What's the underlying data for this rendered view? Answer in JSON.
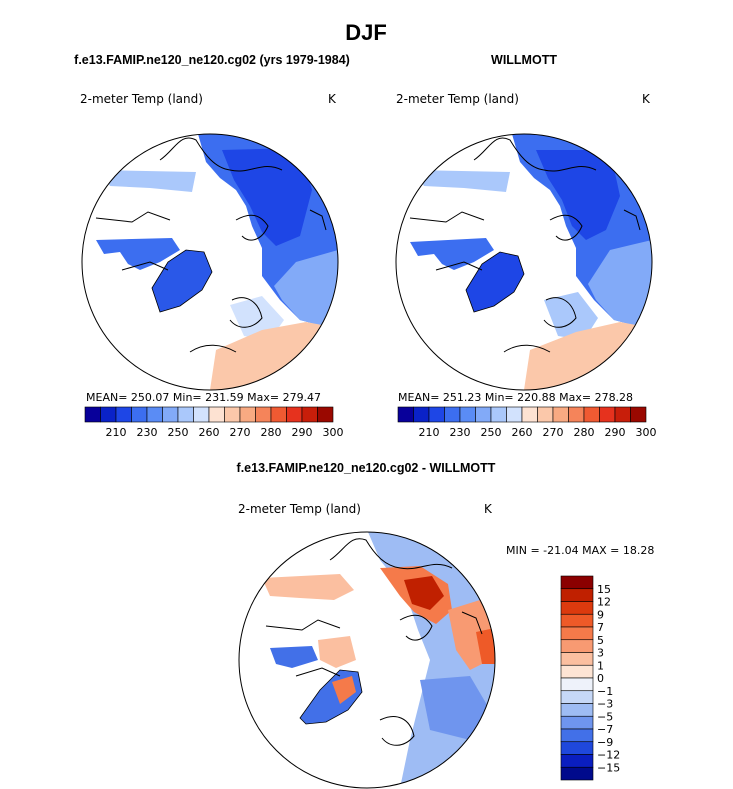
{
  "chart_data": {
    "type": "heatmap",
    "projection": "north-polar-stereographic",
    "title": "DJF",
    "panels": [
      {
        "id": "model",
        "title": "f.e13.FAMIP.ne120_ne120.cg02 (yrs 1979-1984)",
        "variable": "2-meter Temp (land)",
        "units": "K",
        "stats": {
          "mean": "250.07",
          "min": "231.59",
          "max": "279.47"
        },
        "stats_text": "MEAN= 250.07  Min= 231.59  Max= 279.47"
      },
      {
        "id": "obs",
        "title": "WILLMOTT",
        "variable": "2-meter Temp (land)",
        "units": "K",
        "stats": {
          "mean": "251.23",
          "min": "220.88",
          "max": "278.28"
        },
        "stats_text": "MEAN= 251.23  Min= 220.88  Max= 278.28"
      },
      {
        "id": "diff",
        "title": "f.e13.FAMIP.ne120_ne120.cg02 - WILLMOTT",
        "variable": "2-meter Temp (land)",
        "units": "K",
        "stats": {
          "min": "-21.04",
          "max": "18.28"
        },
        "stats_text": "MIN = -21.04 MAX =  18.28"
      }
    ],
    "colorbar_abs": {
      "ticks": [
        "210",
        "230",
        "250",
        "260",
        "270",
        "280",
        "290",
        "300"
      ],
      "colors": [
        "#08009a",
        "#0a22c8",
        "#1e46e6",
        "#3c6ef0",
        "#5a8cf5",
        "#82aaf8",
        "#aac8fb",
        "#d2e2fd",
        "#fde2d2",
        "#fbc8aa",
        "#f8aa82",
        "#f5845a",
        "#f05a32",
        "#e6321e",
        "#c81e0a",
        "#9a0800"
      ]
    },
    "colorbar_diff": {
      "ticks": [
        "15",
        "12",
        "9",
        "7",
        "5",
        "3",
        "1",
        "0",
        "−1",
        "−3",
        "−5",
        "−7",
        "−9",
        "−12",
        "−15"
      ],
      "colors": [
        "#8b0000",
        "#c02000",
        "#dc3a0e",
        "#ee5a28",
        "#f57a4a",
        "#f89a72",
        "#fbbfa0",
        "#fde4d4",
        "#eef2fa",
        "#c6d8f7",
        "#9ebcf4",
        "#6f95ee",
        "#4270e8",
        "#1f48dc",
        "#0a1ec0",
        "#000a8c"
      ]
    }
  }
}
